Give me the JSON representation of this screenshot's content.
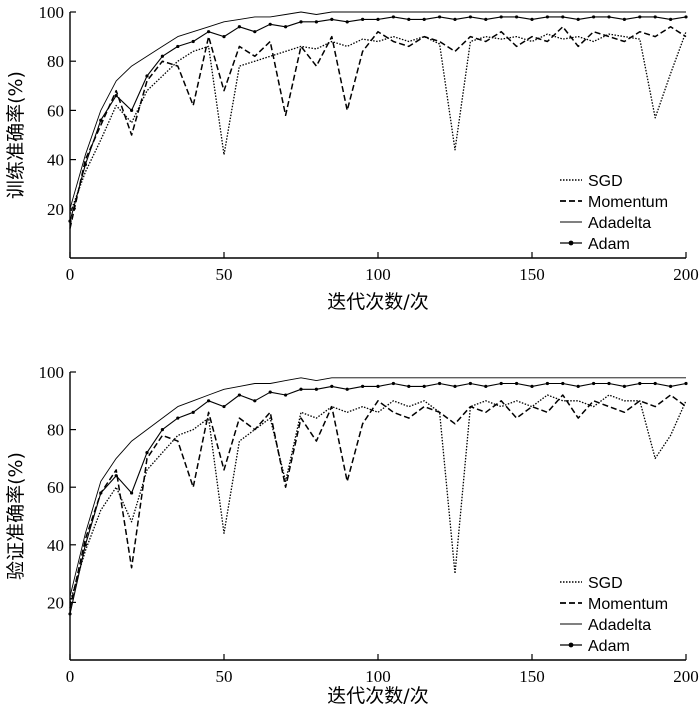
{
  "chart_data": [
    {
      "type": "line",
      "xlabel": "迭代次数/次",
      "ylabel": "训练准确率(%)",
      "xlim": [
        0,
        200
      ],
      "ylim": [
        0,
        100
      ],
      "xticks": [
        0,
        50,
        100,
        150,
        200
      ],
      "yticks": [
        20,
        40,
        60,
        80,
        100
      ],
      "grid": false,
      "legend_position": "bottom-right",
      "x": [
        0,
        5,
        10,
        15,
        20,
        25,
        30,
        35,
        40,
        45,
        50,
        55,
        60,
        65,
        70,
        75,
        80,
        85,
        90,
        95,
        100,
        105,
        110,
        115,
        120,
        125,
        130,
        135,
        140,
        145,
        150,
        155,
        160,
        165,
        170,
        175,
        180,
        185,
        190,
        195,
        200
      ],
      "series": [
        {
          "name": "SGD",
          "values": [
            18,
            35,
            48,
            62,
            55,
            68,
            74,
            80,
            84,
            86,
            42,
            78,
            80,
            82,
            84,
            86,
            85,
            88,
            86,
            89,
            88,
            90,
            88,
            90,
            87,
            44,
            88,
            90,
            89,
            90,
            88,
            91,
            89,
            90,
            88,
            91,
            90,
            89,
            57,
            75,
            92
          ]
        },
        {
          "name": "Momentum",
          "values": [
            12,
            40,
            54,
            68,
            50,
            72,
            80,
            78,
            62,
            90,
            68,
            86,
            82,
            88,
            58,
            86,
            78,
            90,
            60,
            84,
            92,
            88,
            86,
            90,
            88,
            84,
            90,
            88,
            92,
            86,
            90,
            88,
            94,
            86,
            92,
            90,
            88,
            92,
            90,
            94,
            90
          ]
        },
        {
          "name": "Adadelta",
          "values": [
            20,
            42,
            60,
            72,
            78,
            82,
            86,
            90,
            92,
            94,
            96,
            97,
            98,
            98,
            99,
            100,
            99,
            100,
            100,
            100,
            100,
            100,
            100,
            100,
            100,
            100,
            100,
            100,
            100,
            100,
            100,
            100,
            100,
            100,
            100,
            100,
            100,
            100,
            100,
            100,
            100
          ]
        },
        {
          "name": "Adam",
          "values": [
            15,
            38,
            56,
            66,
            60,
            74,
            82,
            86,
            88,
            92,
            90,
            94,
            92,
            95,
            94,
            96,
            96,
            97,
            96,
            97,
            97,
            98,
            97,
            97,
            98,
            97,
            98,
            97,
            98,
            98,
            97,
            98,
            98,
            97,
            98,
            98,
            97,
            98,
            98,
            97,
            98
          ]
        }
      ]
    },
    {
      "type": "line",
      "xlabel": "迭代次数/次",
      "ylabel": "验证准确率(%)",
      "xlim": [
        0,
        200
      ],
      "ylim": [
        0,
        100
      ],
      "xticks": [
        0,
        50,
        100,
        150,
        200
      ],
      "yticks": [
        20,
        40,
        60,
        80,
        100
      ],
      "grid": false,
      "legend_position": "bottom-right",
      "x": [
        0,
        5,
        10,
        15,
        20,
        25,
        30,
        35,
        40,
        45,
        50,
        55,
        60,
        65,
        70,
        75,
        80,
        85,
        90,
        95,
        100,
        105,
        110,
        115,
        120,
        125,
        130,
        135,
        140,
        145,
        150,
        155,
        160,
        165,
        170,
        175,
        180,
        185,
        190,
        195,
        200
      ],
      "series": [
        {
          "name": "SGD",
          "values": [
            20,
            38,
            52,
            60,
            48,
            66,
            72,
            78,
            80,
            84,
            44,
            76,
            80,
            84,
            62,
            86,
            84,
            88,
            86,
            88,
            86,
            90,
            88,
            90,
            86,
            30,
            88,
            90,
            88,
            90,
            88,
            92,
            90,
            90,
            88,
            92,
            90,
            90,
            70,
            78,
            90
          ]
        },
        {
          "name": "Momentum",
          "values": [
            18,
            42,
            58,
            66,
            32,
            70,
            78,
            76,
            60,
            86,
            66,
            84,
            80,
            86,
            60,
            84,
            76,
            88,
            62,
            82,
            90,
            86,
            84,
            88,
            86,
            82,
            88,
            86,
            90,
            84,
            88,
            86,
            92,
            84,
            90,
            88,
            86,
            90,
            88,
            92,
            88
          ]
        },
        {
          "name": "Adadelta",
          "values": [
            22,
            44,
            62,
            70,
            76,
            80,
            84,
            88,
            90,
            92,
            94,
            95,
            96,
            96,
            97,
            98,
            97,
            98,
            98,
            98,
            98,
            98,
            98,
            98,
            98,
            98,
            98,
            98,
            98,
            98,
            98,
            98,
            98,
            98,
            98,
            98,
            98,
            98,
            98,
            98,
            98
          ]
        },
        {
          "name": "Adam",
          "values": [
            16,
            40,
            58,
            64,
            58,
            72,
            80,
            84,
            86,
            90,
            88,
            92,
            90,
            93,
            92,
            94,
            94,
            95,
            94,
            95,
            95,
            96,
            95,
            95,
            96,
            95,
            96,
            95,
            96,
            96,
            95,
            96,
            96,
            95,
            96,
            96,
            95,
            96,
            96,
            95,
            96
          ]
        }
      ]
    }
  ]
}
